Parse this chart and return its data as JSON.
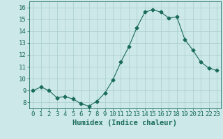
{
  "x": [
    0,
    1,
    2,
    3,
    4,
    5,
    6,
    7,
    8,
    9,
    10,
    11,
    12,
    13,
    14,
    15,
    16,
    17,
    18,
    19,
    20,
    21,
    22,
    23
  ],
  "y": [
    9.0,
    9.3,
    9.0,
    8.4,
    8.5,
    8.3,
    7.9,
    7.7,
    8.1,
    8.8,
    9.9,
    11.4,
    12.7,
    14.3,
    15.6,
    15.8,
    15.6,
    15.1,
    15.2,
    13.3,
    12.4,
    11.4,
    10.9,
    10.7
  ],
  "line_color": "#1a6b5a",
  "marker": "D",
  "marker_size": 2.5,
  "bg_color": "#cce8e8",
  "grid_color": "#aacece",
  "xlabel": "Humidex (Indice chaleur)",
  "xlim": [
    -0.5,
    23.5
  ],
  "ylim": [
    7.5,
    16.5
  ],
  "yticks": [
    8,
    9,
    10,
    11,
    12,
    13,
    14,
    15,
    16
  ],
  "xticks": [
    0,
    1,
    2,
    3,
    4,
    5,
    6,
    7,
    8,
    9,
    10,
    11,
    12,
    13,
    14,
    15,
    16,
    17,
    18,
    19,
    20,
    21,
    22,
    23
  ],
  "tick_color": "#1a6b5a",
  "label_color": "#1a6b5a",
  "xlabel_fontsize": 7.5,
  "tick_fontsize": 6.5
}
